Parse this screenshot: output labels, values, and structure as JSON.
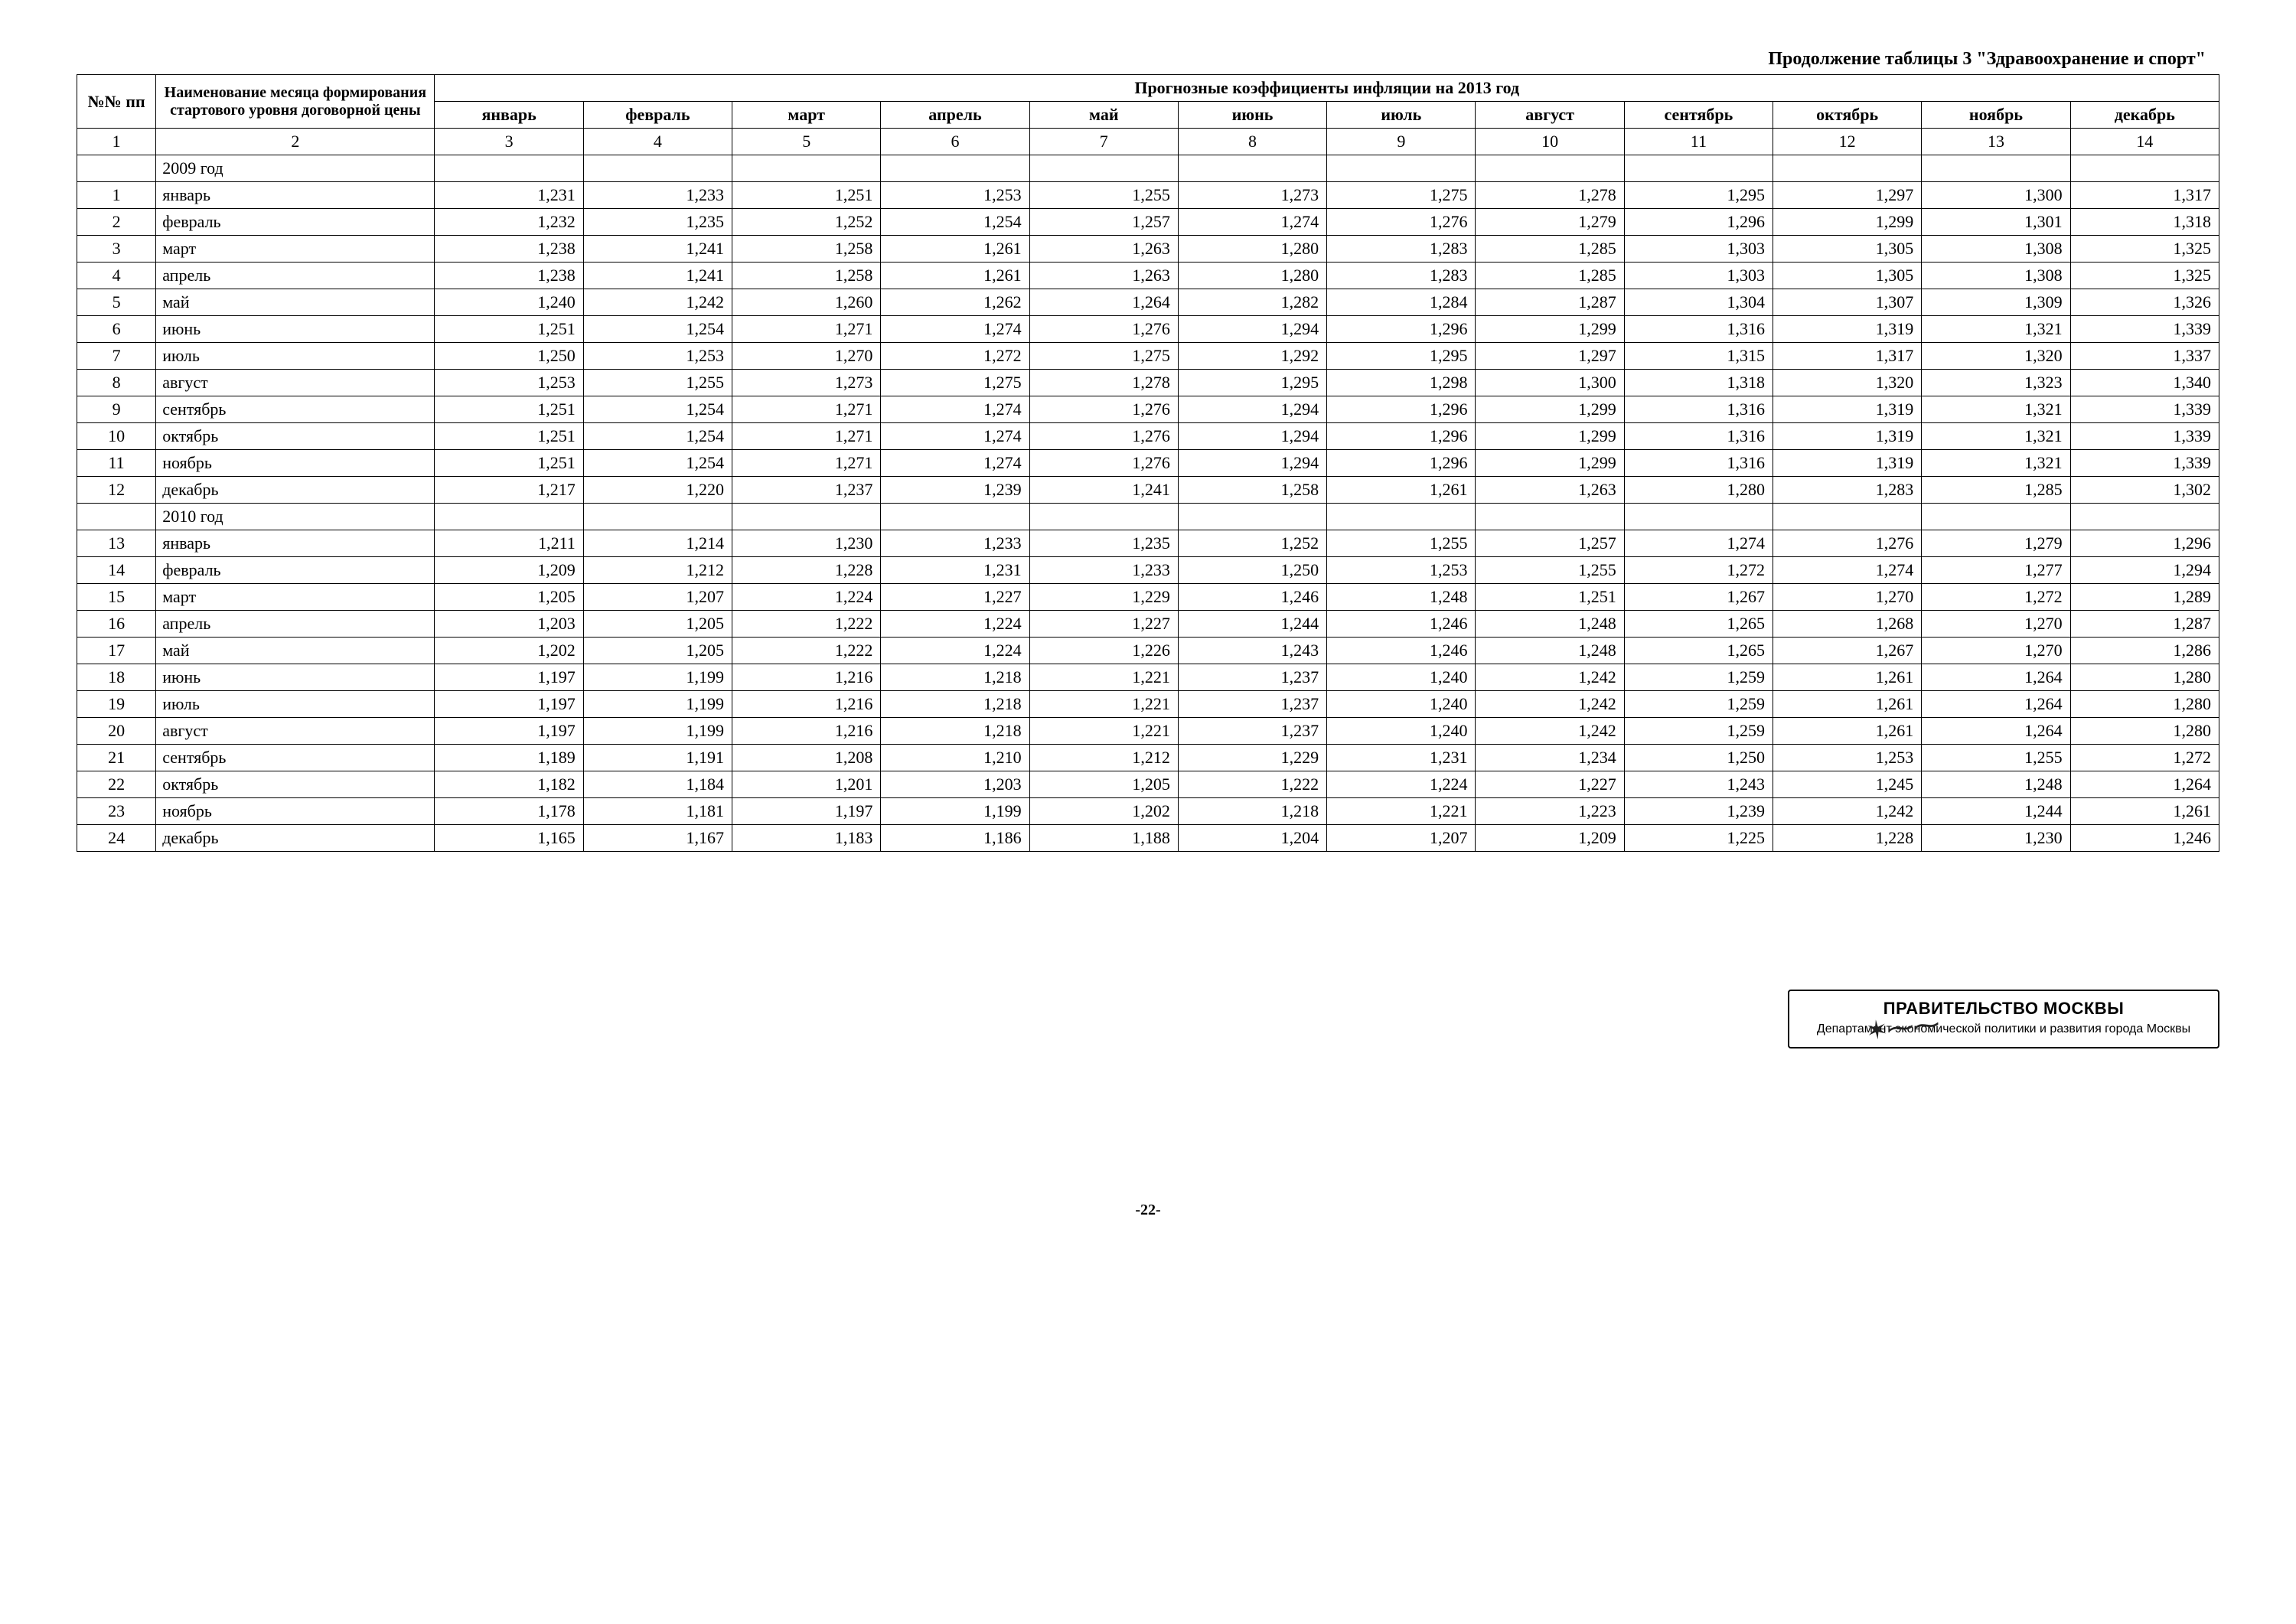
{
  "caption": "Продолжение таблицы 3 \"Здравоохранение и спорт\"",
  "header": {
    "col1": "№№ пп",
    "col2": "Наименование месяца формирования стартового уровня договорной цены",
    "group": "Прогнозные коэффициенты инфляции на 2013 год",
    "months": [
      "январь",
      "февраль",
      "март",
      "апрель",
      "май",
      "июнь",
      "июль",
      "август",
      "сентябрь",
      "октябрь",
      "ноябрь",
      "декабрь"
    ]
  },
  "colnums": [
    "1",
    "2",
    "3",
    "4",
    "5",
    "6",
    "7",
    "8",
    "9",
    "10",
    "11",
    "12",
    "13",
    "14"
  ],
  "sections": [
    {
      "year": "2009 год",
      "rows": [
        {
          "n": "1",
          "name": "январь",
          "v": [
            "1,231",
            "1,233",
            "1,251",
            "1,253",
            "1,255",
            "1,273",
            "1,275",
            "1,278",
            "1,295",
            "1,297",
            "1,300",
            "1,317"
          ]
        },
        {
          "n": "2",
          "name": "февраль",
          "v": [
            "1,232",
            "1,235",
            "1,252",
            "1,254",
            "1,257",
            "1,274",
            "1,276",
            "1,279",
            "1,296",
            "1,299",
            "1,301",
            "1,318"
          ]
        },
        {
          "n": "3",
          "name": "март",
          "v": [
            "1,238",
            "1,241",
            "1,258",
            "1,261",
            "1,263",
            "1,280",
            "1,283",
            "1,285",
            "1,303",
            "1,305",
            "1,308",
            "1,325"
          ]
        },
        {
          "n": "4",
          "name": "апрель",
          "v": [
            "1,238",
            "1,241",
            "1,258",
            "1,261",
            "1,263",
            "1,280",
            "1,283",
            "1,285",
            "1,303",
            "1,305",
            "1,308",
            "1,325"
          ]
        },
        {
          "n": "5",
          "name": "май",
          "v": [
            "1,240",
            "1,242",
            "1,260",
            "1,262",
            "1,264",
            "1,282",
            "1,284",
            "1,287",
            "1,304",
            "1,307",
            "1,309",
            "1,326"
          ]
        },
        {
          "n": "6",
          "name": "июнь",
          "v": [
            "1,251",
            "1,254",
            "1,271",
            "1,274",
            "1,276",
            "1,294",
            "1,296",
            "1,299",
            "1,316",
            "1,319",
            "1,321",
            "1,339"
          ]
        },
        {
          "n": "7",
          "name": "июль",
          "v": [
            "1,250",
            "1,253",
            "1,270",
            "1,272",
            "1,275",
            "1,292",
            "1,295",
            "1,297",
            "1,315",
            "1,317",
            "1,320",
            "1,337"
          ]
        },
        {
          "n": "8",
          "name": "август",
          "v": [
            "1,253",
            "1,255",
            "1,273",
            "1,275",
            "1,278",
            "1,295",
            "1,298",
            "1,300",
            "1,318",
            "1,320",
            "1,323",
            "1,340"
          ]
        },
        {
          "n": "9",
          "name": "сентябрь",
          "v": [
            "1,251",
            "1,254",
            "1,271",
            "1,274",
            "1,276",
            "1,294",
            "1,296",
            "1,299",
            "1,316",
            "1,319",
            "1,321",
            "1,339"
          ]
        },
        {
          "n": "10",
          "name": "октябрь",
          "v": [
            "1,251",
            "1,254",
            "1,271",
            "1,274",
            "1,276",
            "1,294",
            "1,296",
            "1,299",
            "1,316",
            "1,319",
            "1,321",
            "1,339"
          ]
        },
        {
          "n": "11",
          "name": "ноябрь",
          "v": [
            "1,251",
            "1,254",
            "1,271",
            "1,274",
            "1,276",
            "1,294",
            "1,296",
            "1,299",
            "1,316",
            "1,319",
            "1,321",
            "1,339"
          ]
        },
        {
          "n": "12",
          "name": "декабрь",
          "v": [
            "1,217",
            "1,220",
            "1,237",
            "1,239",
            "1,241",
            "1,258",
            "1,261",
            "1,263",
            "1,280",
            "1,283",
            "1,285",
            "1,302"
          ]
        }
      ]
    },
    {
      "year": "2010 год",
      "rows": [
        {
          "n": "13",
          "name": "январь",
          "v": [
            "1,211",
            "1,214",
            "1,230",
            "1,233",
            "1,235",
            "1,252",
            "1,255",
            "1,257",
            "1,274",
            "1,276",
            "1,279",
            "1,296"
          ]
        },
        {
          "n": "14",
          "name": "февраль",
          "v": [
            "1,209",
            "1,212",
            "1,228",
            "1,231",
            "1,233",
            "1,250",
            "1,253",
            "1,255",
            "1,272",
            "1,274",
            "1,277",
            "1,294"
          ]
        },
        {
          "n": "15",
          "name": "март",
          "v": [
            "1,205",
            "1,207",
            "1,224",
            "1,227",
            "1,229",
            "1,246",
            "1,248",
            "1,251",
            "1,267",
            "1,270",
            "1,272",
            "1,289"
          ]
        },
        {
          "n": "16",
          "name": "апрель",
          "v": [
            "1,203",
            "1,205",
            "1,222",
            "1,224",
            "1,227",
            "1,244",
            "1,246",
            "1,248",
            "1,265",
            "1,268",
            "1,270",
            "1,287"
          ]
        },
        {
          "n": "17",
          "name": "май",
          "v": [
            "1,202",
            "1,205",
            "1,222",
            "1,224",
            "1,226",
            "1,243",
            "1,246",
            "1,248",
            "1,265",
            "1,267",
            "1,270",
            "1,286"
          ]
        },
        {
          "n": "18",
          "name": "июнь",
          "v": [
            "1,197",
            "1,199",
            "1,216",
            "1,218",
            "1,221",
            "1,237",
            "1,240",
            "1,242",
            "1,259",
            "1,261",
            "1,264",
            "1,280"
          ]
        },
        {
          "n": "19",
          "name": "июль",
          "v": [
            "1,197",
            "1,199",
            "1,216",
            "1,218",
            "1,221",
            "1,237",
            "1,240",
            "1,242",
            "1,259",
            "1,261",
            "1,264",
            "1,280"
          ]
        },
        {
          "n": "20",
          "name": "август",
          "v": [
            "1,197",
            "1,199",
            "1,216",
            "1,218",
            "1,221",
            "1,237",
            "1,240",
            "1,242",
            "1,259",
            "1,261",
            "1,264",
            "1,280"
          ]
        },
        {
          "n": "21",
          "name": "сентябрь",
          "v": [
            "1,189",
            "1,191",
            "1,208",
            "1,210",
            "1,212",
            "1,229",
            "1,231",
            "1,234",
            "1,250",
            "1,253",
            "1,255",
            "1,272"
          ]
        },
        {
          "n": "22",
          "name": "октябрь",
          "v": [
            "1,182",
            "1,184",
            "1,201",
            "1,203",
            "1,205",
            "1,222",
            "1,224",
            "1,227",
            "1,243",
            "1,245",
            "1,248",
            "1,264"
          ]
        },
        {
          "n": "23",
          "name": "ноябрь",
          "v": [
            "1,178",
            "1,181",
            "1,197",
            "1,199",
            "1,202",
            "1,218",
            "1,221",
            "1,223",
            "1,239",
            "1,242",
            "1,244",
            "1,261"
          ]
        },
        {
          "n": "24",
          "name": "декабрь",
          "v": [
            "1,165",
            "1,167",
            "1,183",
            "1,186",
            "1,188",
            "1,204",
            "1,207",
            "1,209",
            "1,225",
            "1,228",
            "1,230",
            "1,246"
          ]
        }
      ]
    }
  ],
  "stamp": {
    "line1": "ПРАВИТЕЛЬСТВО МОСКВЫ",
    "line2": "Департамент экономической политики и развития города Москвы"
  },
  "pagenum": "-22-"
}
